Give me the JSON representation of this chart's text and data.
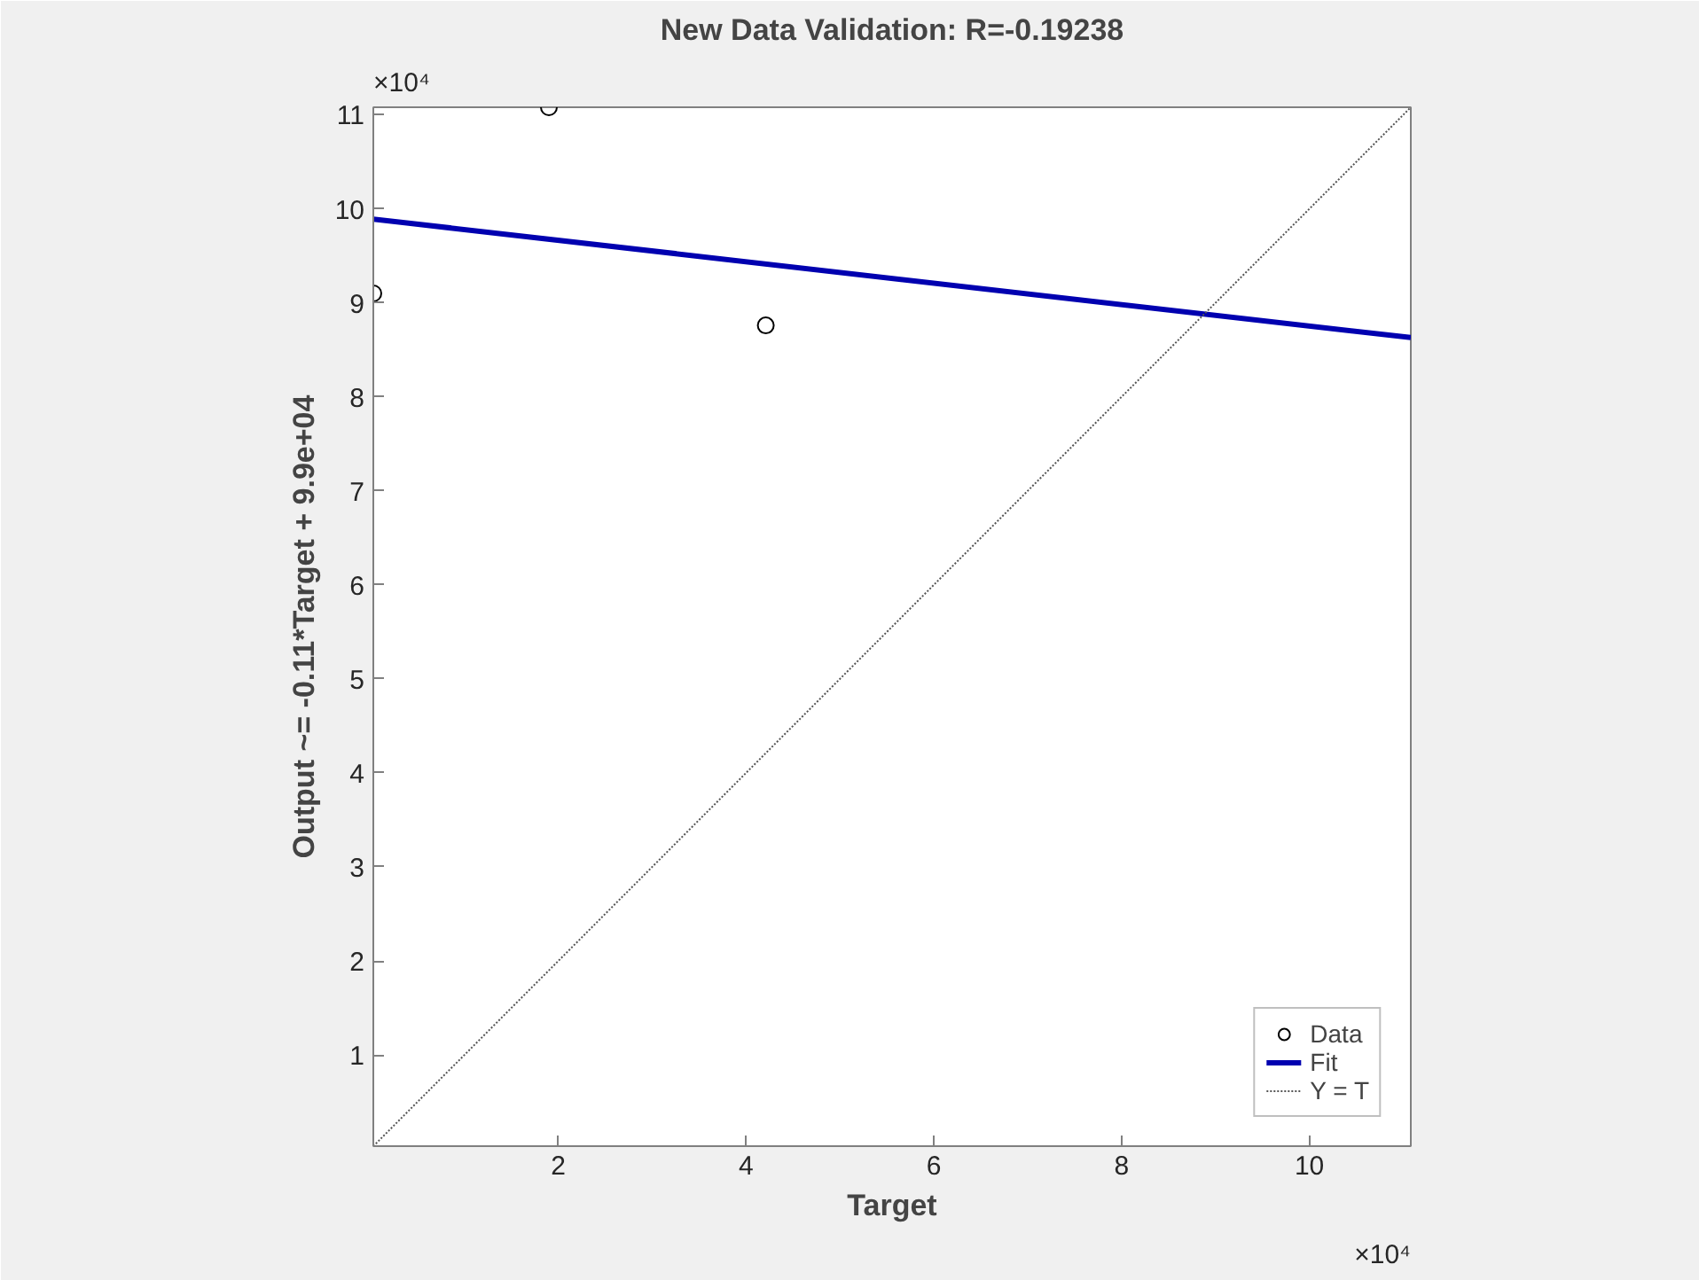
{
  "chart_data": {
    "type": "scatter",
    "title": "New Data Validation: R=-0.19238",
    "xlabel": "Target",
    "ylabel": "Output ~= -0.11*Target + 9.9e+04",
    "xlim": [
      0.03,
      11.08
    ],
    "ylim": [
      0.03,
      11.08
    ],
    "xticks": [
      2,
      4,
      6,
      8,
      10
    ],
    "yticks": [
      1,
      2,
      3,
      4,
      5,
      6,
      7,
      8,
      9,
      10,
      11
    ],
    "annotations": [
      "×10⁴",
      "×10⁴"
    ],
    "grid": false,
    "legend": "bottom right",
    "series": [
      {
        "name": "Data",
        "marker": "circle",
        "color": "#000000",
        "x": [
          0.03,
          1.9,
          4.21
        ],
        "values": [
          9.1,
          11.08,
          8.76
        ]
      },
      {
        "name": "Fit",
        "type": "line",
        "line_style": "solid",
        "color": "#0000b0",
        "x": [
          0.03,
          11.08
        ],
        "values": [
          9.89,
          8.63
        ]
      },
      {
        "name": "Y = T",
        "type": "line",
        "line_style": "dotted",
        "color": "#555555",
        "x": [
          0.03,
          11.08
        ],
        "values": [
          0.03,
          11.08
        ]
      }
    ]
  }
}
